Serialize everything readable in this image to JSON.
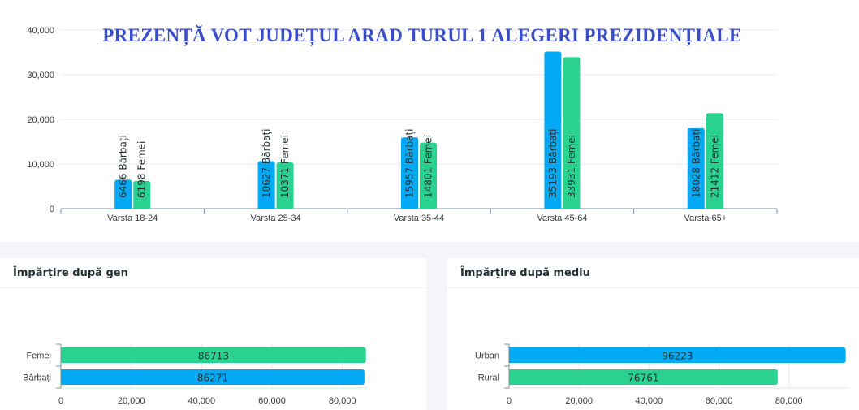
{
  "colors": {
    "blue": "#03a9f4",
    "green": "#2ad18f",
    "title": "#3a4fc7"
  },
  "chart_data": [
    {
      "type": "bar",
      "title": "PREZENȚĂ VOT JUDEȚUL ARAD TURUL 1 ALEGERI PREZIDENȚIALE",
      "categories": [
        "Varsta 18-24",
        "Varsta 25-34",
        "Varsta 35-44",
        "Varsta 45-64",
        "Varsta 65+"
      ],
      "series": [
        {
          "name": "Bărbați",
          "values": [
            6466,
            10627,
            15957,
            35193,
            18028
          ],
          "color": "#03a9f4"
        },
        {
          "name": "Femei",
          "values": [
            6198,
            10371,
            14801,
            33931,
            21412
          ],
          "color": "#2ad18f"
        }
      ],
      "data_labels": [
        [
          "6466 Bărbați",
          "10627 Bărbați",
          "15957 Bărbați",
          "35193 Bărbați",
          "18028 Bărbați"
        ],
        [
          "6198 Femei",
          "10371 Femei",
          "14801 Femei",
          "33931 Femei",
          "21412 Femei"
        ]
      ],
      "ylim": [
        0,
        40000
      ],
      "yticks": [
        "0",
        "10,000",
        "20,000",
        "30,000",
        "40,000"
      ],
      "grid": true
    },
    {
      "type": "bar",
      "orientation": "horizontal",
      "title": "Împărțire după gen",
      "categories": [
        "Femei",
        "Bărbați"
      ],
      "values": [
        86713,
        86271
      ],
      "colors": [
        "#2ad18f",
        "#03a9f4"
      ],
      "xlim": [
        0,
        87000
      ],
      "xticks": [
        "0",
        "20,000",
        "40,000",
        "60,000",
        "80,000"
      ]
    },
    {
      "type": "bar",
      "orientation": "horizontal",
      "title": "Împărțire după mediu",
      "categories": [
        "Urban",
        "Rural"
      ],
      "values": [
        96223,
        76761
      ],
      "colors": [
        "#03a9f4",
        "#2ad18f"
      ],
      "xlim": [
        0,
        97000
      ],
      "xticks": [
        "0",
        "20,000",
        "40,000",
        "60,000",
        "80,000"
      ]
    }
  ]
}
